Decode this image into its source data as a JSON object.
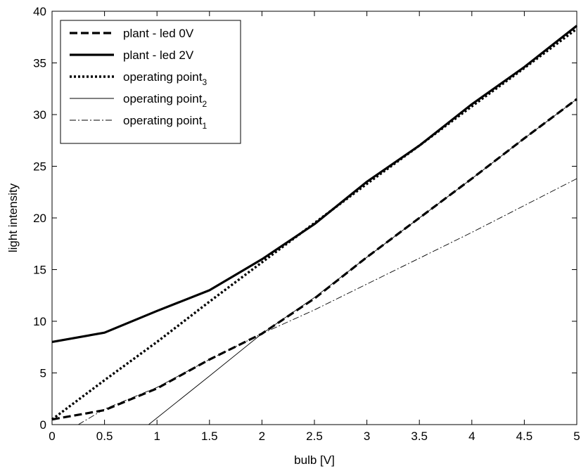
{
  "chart_data": {
    "type": "line",
    "title": "",
    "xlabel": "bulb [V]",
    "ylabel": "light intensity",
    "xlim": [
      0,
      5
    ],
    "ylim": [
      0,
      40
    ],
    "xticks": [
      "0",
      "0.5",
      "1",
      "1.5",
      "2",
      "2.5",
      "3",
      "3.5",
      "4",
      "4.5",
      "5"
    ],
    "yticks": [
      "0",
      "5",
      "10",
      "15",
      "20",
      "25",
      "30",
      "35",
      "40"
    ],
    "grid": false,
    "legend_position": "top-left",
    "series": [
      {
        "name": "plant - led 0V",
        "legend_main": "plant - led 0V",
        "legend_sub": "",
        "style": "dashed-thick",
        "x": [
          0,
          0.5,
          1,
          1.5,
          2,
          2.5,
          3,
          3.5,
          4,
          4.5,
          5
        ],
        "y": [
          0.5,
          1.4,
          3.5,
          6.3,
          8.8,
          12.2,
          16.2,
          20,
          23.8,
          27.7,
          31.5
        ]
      },
      {
        "name": "plant - led 2V",
        "legend_main": "plant - led 2V",
        "legend_sub": "",
        "style": "solid-thick",
        "x": [
          0,
          0.5,
          1,
          1.5,
          2,
          2.5,
          3,
          3.5,
          4,
          4.5,
          5
        ],
        "y": [
          8,
          8.9,
          11,
          13,
          16,
          19.4,
          23.5,
          27,
          31,
          34.6,
          38.6
        ]
      },
      {
        "name": "operating point3",
        "legend_main": "operating point",
        "legend_sub": "3",
        "style": "dotted-thick",
        "x": [
          0,
          0.5,
          1,
          1.5,
          2,
          2.5,
          3,
          3.5,
          4,
          4.5,
          5
        ],
        "y": [
          0.5,
          4.3,
          8,
          11.9,
          15.7,
          19.5,
          23.3,
          27,
          30.8,
          34.5,
          38.3
        ]
      },
      {
        "name": "operating point2",
        "legend_main": "operating point",
        "legend_sub": "2",
        "style": "solid-thin",
        "x": [
          0.92,
          1.5,
          2,
          2.5,
          3,
          3.5,
          4,
          4.5,
          5
        ],
        "y": [
          0,
          4.7,
          8.8,
          12.3,
          16.2,
          20,
          23.8,
          27.7,
          31.5
        ]
      },
      {
        "name": "operating point1",
        "legend_main": "operating point",
        "legend_sub": "1",
        "style": "dashdot-thin",
        "x": [
          0.25,
          0.5,
          1,
          1.5,
          2,
          2.5,
          3,
          3.5,
          4,
          4.5,
          5
        ],
        "y": [
          0,
          1.5,
          3.6,
          6.3,
          8.8,
          11.1,
          13.6,
          16.1,
          18.6,
          21.2,
          23.8
        ]
      }
    ]
  }
}
